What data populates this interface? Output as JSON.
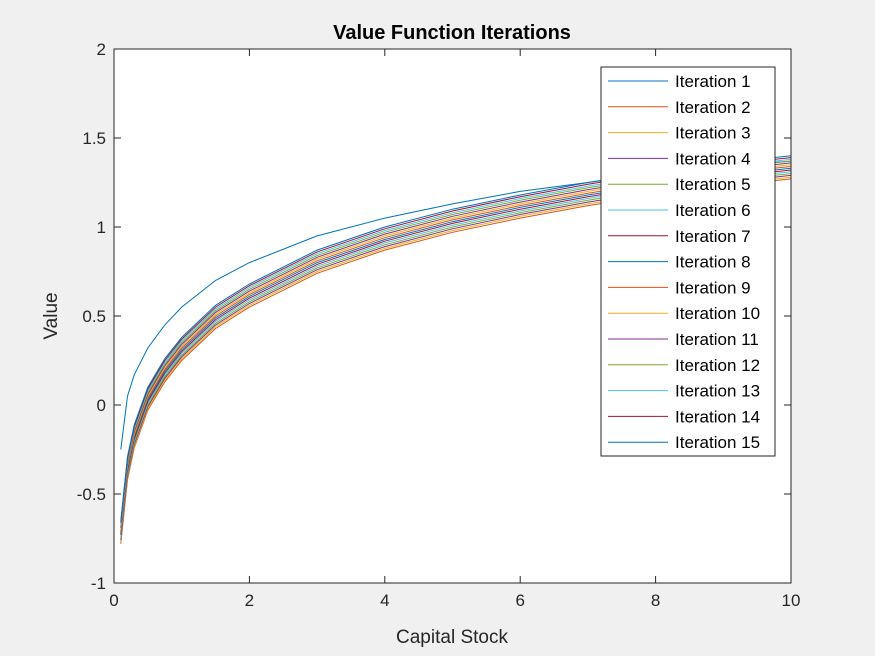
{
  "chart_data": {
    "type": "line",
    "title": "Value Function Iterations",
    "xlabel": "Capital Stock",
    "ylabel": "Value",
    "xlim": [
      0,
      10
    ],
    "ylim": [
      -1,
      2
    ],
    "xticks": [
      0,
      2,
      4,
      6,
      8,
      10
    ],
    "xtick_labels": [
      "0",
      "2",
      "4",
      "6",
      "8",
      "10"
    ],
    "yticks": [
      -1,
      -0.5,
      0,
      0.5,
      1,
      1.5,
      2
    ],
    "ytick_labels": [
      "-1",
      "-0.5",
      "0",
      "0.5",
      "1",
      "1.5",
      "2"
    ],
    "grid": false,
    "legend_position": "top-right",
    "x": [
      0.1,
      0.2,
      0.3,
      0.5,
      0.75,
      1,
      1.5,
      2,
      3,
      4,
      5,
      6,
      7,
      8,
      9,
      10
    ],
    "series": [
      {
        "name": "Iteration 1",
        "color": "#0072BD",
        "values": [
          -0.25,
          0.05,
          0.17,
          0.32,
          0.45,
          0.55,
          0.7,
          0.8,
          0.95,
          1.05,
          1.13,
          1.2,
          1.25,
          1.3,
          1.34,
          1.37
        ]
      },
      {
        "name": "Iteration 2",
        "color": "#D95319",
        "values": [
          -0.78,
          -0.42,
          -0.24,
          -0.03,
          0.13,
          0.25,
          0.43,
          0.55,
          0.74,
          0.87,
          0.97,
          1.05,
          1.12,
          1.18,
          1.23,
          1.27
        ]
      },
      {
        "name": "Iteration 3",
        "color": "#EDB120",
        "values": [
          -0.77,
          -0.41,
          -0.23,
          -0.02,
          0.14,
          0.26,
          0.44,
          0.56,
          0.75,
          0.88,
          0.98,
          1.06,
          1.13,
          1.19,
          1.24,
          1.28
        ]
      },
      {
        "name": "Iteration 4",
        "color": "#7E2F8E",
        "values": [
          -0.76,
          -0.4,
          -0.22,
          -0.01,
          0.15,
          0.27,
          0.45,
          0.57,
          0.76,
          0.89,
          0.99,
          1.07,
          1.14,
          1.2,
          1.25,
          1.29
        ]
      },
      {
        "name": "Iteration 5",
        "color": "#77AC30",
        "values": [
          -0.75,
          -0.39,
          -0.21,
          0.0,
          0.16,
          0.28,
          0.46,
          0.58,
          0.77,
          0.9,
          1.0,
          1.08,
          1.15,
          1.21,
          1.26,
          1.3
        ]
      },
      {
        "name": "Iteration 6",
        "color": "#4DBEEE",
        "values": [
          -0.74,
          -0.38,
          -0.2,
          0.01,
          0.17,
          0.29,
          0.47,
          0.59,
          0.78,
          0.91,
          1.01,
          1.09,
          1.16,
          1.22,
          1.27,
          1.31
        ]
      },
      {
        "name": "Iteration 7",
        "color": "#A2142F",
        "values": [
          -0.73,
          -0.37,
          -0.19,
          0.02,
          0.18,
          0.3,
          0.48,
          0.6,
          0.79,
          0.92,
          1.02,
          1.1,
          1.17,
          1.23,
          1.28,
          1.32
        ]
      },
      {
        "name": "Iteration 8",
        "color": "#0072BD",
        "values": [
          -0.72,
          -0.36,
          -0.18,
          0.03,
          0.19,
          0.31,
          0.49,
          0.61,
          0.8,
          0.93,
          1.03,
          1.11,
          1.18,
          1.24,
          1.29,
          1.33
        ]
      },
      {
        "name": "Iteration 9",
        "color": "#D95319",
        "values": [
          -0.71,
          -0.35,
          -0.17,
          0.04,
          0.2,
          0.32,
          0.5,
          0.62,
          0.81,
          0.94,
          1.04,
          1.12,
          1.19,
          1.25,
          1.3,
          1.34
        ]
      },
      {
        "name": "Iteration 10",
        "color": "#EDB120",
        "values": [
          -0.7,
          -0.34,
          -0.16,
          0.05,
          0.21,
          0.33,
          0.51,
          0.63,
          0.82,
          0.95,
          1.05,
          1.13,
          1.2,
          1.26,
          1.31,
          1.35
        ]
      },
      {
        "name": "Iteration 11",
        "color": "#7E2F8E",
        "values": [
          -0.69,
          -0.33,
          -0.15,
          0.06,
          0.22,
          0.34,
          0.52,
          0.64,
          0.83,
          0.96,
          1.06,
          1.14,
          1.21,
          1.27,
          1.32,
          1.36
        ]
      },
      {
        "name": "Iteration 12",
        "color": "#77AC30",
        "values": [
          -0.68,
          -0.32,
          -0.14,
          0.07,
          0.23,
          0.35,
          0.53,
          0.65,
          0.84,
          0.97,
          1.07,
          1.15,
          1.22,
          1.28,
          1.33,
          1.37
        ]
      },
      {
        "name": "Iteration 13",
        "color": "#4DBEEE",
        "values": [
          -0.67,
          -0.31,
          -0.13,
          0.08,
          0.24,
          0.36,
          0.54,
          0.66,
          0.85,
          0.98,
          1.08,
          1.16,
          1.23,
          1.29,
          1.34,
          1.38
        ]
      },
      {
        "name": "Iteration 14",
        "color": "#A2142F",
        "values": [
          -0.66,
          -0.3,
          -0.12,
          0.09,
          0.25,
          0.37,
          0.55,
          0.67,
          0.86,
          0.99,
          1.09,
          1.17,
          1.24,
          1.3,
          1.35,
          1.39
        ]
      },
      {
        "name": "Iteration 15",
        "color": "#0072BD",
        "values": [
          -0.65,
          -0.29,
          -0.11,
          0.1,
          0.26,
          0.38,
          0.56,
          0.68,
          0.87,
          1.0,
          1.1,
          1.18,
          1.25,
          1.31,
          1.36,
          1.4
        ]
      }
    ]
  }
}
